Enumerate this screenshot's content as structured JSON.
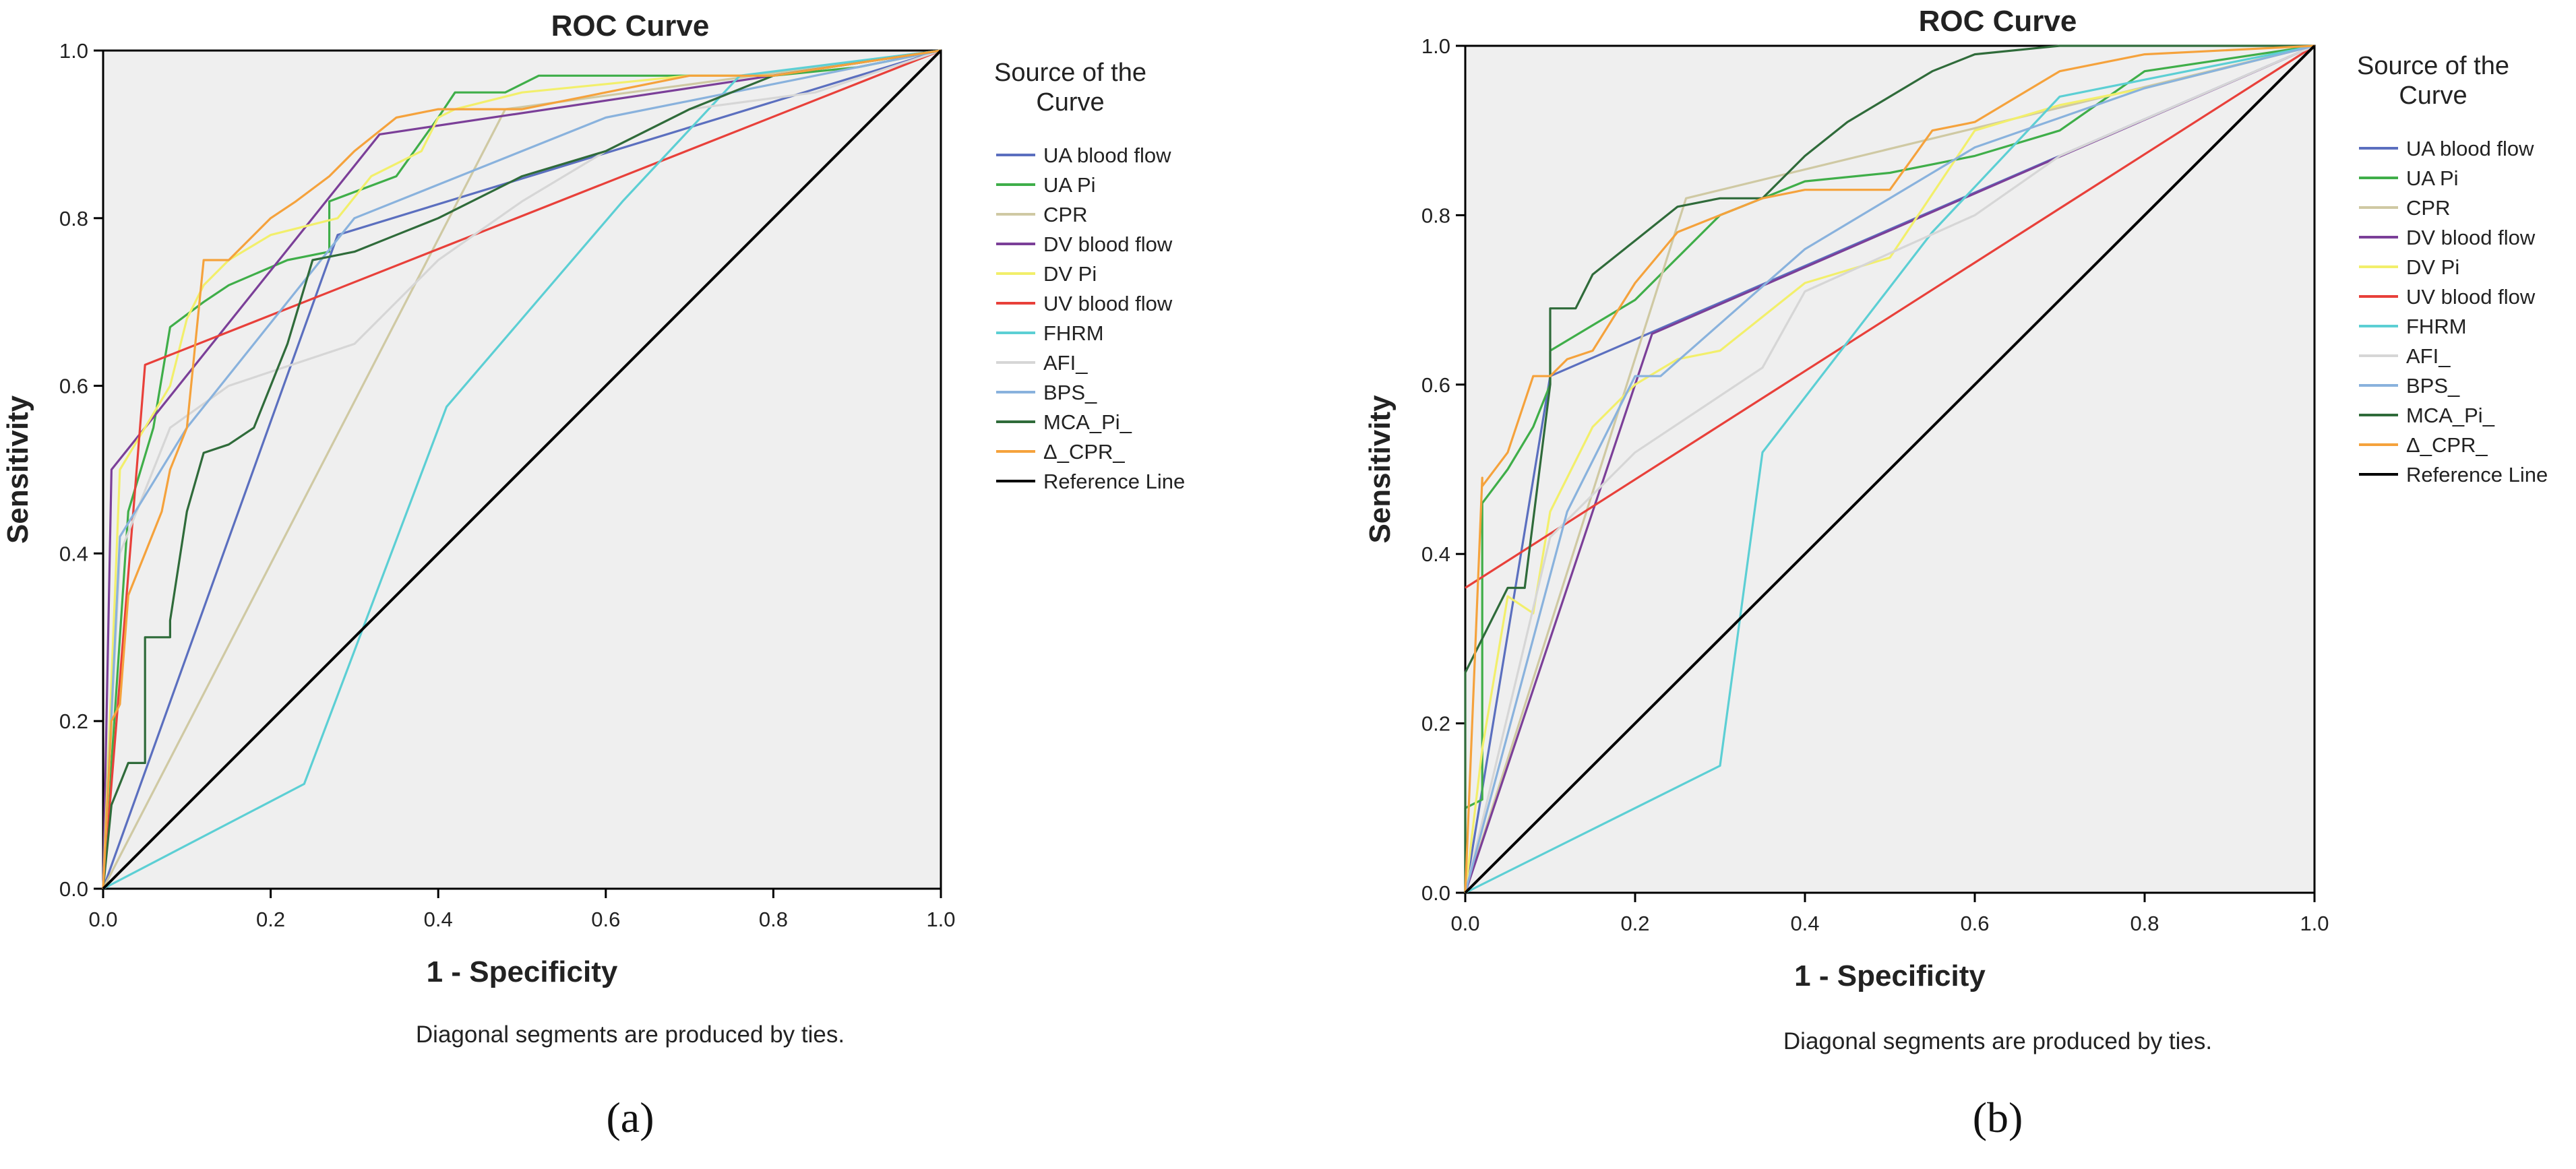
{
  "panels": [
    {
      "panel_label": "(a)",
      "footnote": "Diagonal segments are produced by ties."
    },
    {
      "panel_label": "(b)",
      "footnote": "Diagonal segments are produced by ties."
    }
  ],
  "chart_data": [
    {
      "type": "line",
      "title": "ROC Curve",
      "xlabel": "1 - Specificity",
      "ylabel": "Sensitivity",
      "xlim": [
        0,
        1
      ],
      "ylim": [
        0,
        1
      ],
      "xticks": [
        "0.0",
        "0.2",
        "0.4",
        "0.6",
        "0.8",
        "1.0"
      ],
      "yticks": [
        "0.0",
        "0.2",
        "0.4",
        "0.6",
        "0.8",
        "1.0"
      ],
      "grid": false,
      "legend_title": "Source of the Curve",
      "legend_position": "right",
      "series": [
        {
          "name": "UA blood flow",
          "color": "#5b6fbf",
          "x": [
            0,
            0.28,
            1
          ],
          "y": [
            0,
            0.78,
            1
          ]
        },
        {
          "name": "UA  Pi",
          "color": "#3fae49",
          "x": [
            0,
            0.02,
            0.03,
            0.06,
            0.08,
            0.12,
            0.15,
            0.22,
            0.27,
            0.27,
            0.35,
            0.4,
            0.42,
            0.48,
            0.52,
            0.55,
            0.6,
            0.68,
            0.8,
            0.9,
            1
          ],
          "y": [
            0,
            0.3,
            0.45,
            0.55,
            0.67,
            0.7,
            0.72,
            0.75,
            0.76,
            0.82,
            0.85,
            0.92,
            0.95,
            0.95,
            0.97,
            0.97,
            0.97,
            0.97,
            0.97,
            0.98,
            1
          ]
        },
        {
          "name": "CPR",
          "color": "#cfc9a3",
          "x": [
            0,
            0.48,
            1
          ],
          "y": [
            0,
            0.93,
            1
          ]
        },
        {
          "name": "DV blood flow",
          "color": "#7b3f98",
          "x": [
            0,
            0.01,
            0.33,
            1
          ],
          "y": [
            0,
            0.5,
            0.9,
            1
          ]
        },
        {
          "name": "DV Pi",
          "color": "#f2ef6b",
          "x": [
            0,
            0.02,
            0.08,
            0.1,
            0.12,
            0.15,
            0.2,
            0.28,
            0.32,
            0.38,
            0.4,
            0.42,
            0.5,
            0.6,
            0.7,
            0.8,
            1
          ],
          "y": [
            0,
            0.5,
            0.6,
            0.68,
            0.72,
            0.75,
            0.78,
            0.8,
            0.85,
            0.88,
            0.92,
            0.93,
            0.95,
            0.96,
            0.97,
            0.97,
            1
          ]
        },
        {
          "name": "UV blood flow",
          "color": "#e8403a",
          "x": [
            0,
            0.05,
            1
          ],
          "y": [
            0,
            0.625,
            1
          ]
        },
        {
          "name": "FHRM",
          "color": "#5ccfd4",
          "x": [
            0,
            0.24,
            0.41,
            0.62,
            0.76,
            1
          ],
          "y": [
            0,
            0.125,
            0.575,
            0.82,
            0.97,
            1
          ]
        },
        {
          "name": "AFI_",
          "color": "#d6d6d6",
          "x": [
            0,
            0.02,
            0.08,
            0.15,
            0.3,
            0.4,
            0.5,
            0.6,
            0.7,
            0.85,
            1
          ],
          "y": [
            0,
            0.4,
            0.55,
            0.6,
            0.65,
            0.75,
            0.82,
            0.88,
            0.93,
            0.95,
            1
          ]
        },
        {
          "name": "BPS_",
          "color": "#89b2dd",
          "x": [
            0,
            0.02,
            0.1,
            0.3,
            0.6,
            0.8,
            1
          ],
          "y": [
            0,
            0.42,
            0.55,
            0.8,
            0.92,
            0.96,
            1
          ]
        },
        {
          "name": "MCA_Pi_",
          "color": "#2f6b3a",
          "x": [
            0,
            0.01,
            0.02,
            0.03,
            0.05,
            0.05,
            0.08,
            0.08,
            0.1,
            0.12,
            0.15,
            0.18,
            0.2,
            0.22,
            0.25,
            0.3,
            0.35,
            0.4,
            0.5,
            0.6,
            0.7,
            0.8,
            1
          ],
          "y": [
            0,
            0.1,
            0.125,
            0.15,
            0.15,
            0.3,
            0.3,
            0.32,
            0.45,
            0.52,
            0.53,
            0.55,
            0.6,
            0.65,
            0.75,
            0.76,
            0.78,
            0.8,
            0.85,
            0.88,
            0.93,
            0.97,
            1
          ]
        },
        {
          "name": "Δ_CPR_",
          "color": "#f5a23c",
          "x": [
            0,
            0.01,
            0.02,
            0.03,
            0.05,
            0.07,
            0.08,
            0.1,
            0.12,
            0.15,
            0.2,
            0.23,
            0.27,
            0.3,
            0.35,
            0.4,
            0.5,
            0.6,
            0.7,
            0.8,
            1
          ],
          "y": [
            0,
            0.2,
            0.22,
            0.35,
            0.4,
            0.45,
            0.5,
            0.55,
            0.75,
            0.75,
            0.8,
            0.82,
            0.85,
            0.88,
            0.92,
            0.93,
            0.93,
            0.95,
            0.97,
            0.97,
            1
          ]
        },
        {
          "name": "Reference Line",
          "color": "#000000",
          "x": [
            0,
            1
          ],
          "y": [
            0,
            1
          ]
        }
      ]
    },
    {
      "type": "line",
      "title": "ROC Curve",
      "xlabel": "1 - Specificity",
      "ylabel": "Sensitivity",
      "xlim": [
        0,
        1
      ],
      "ylim": [
        0,
        1
      ],
      "xticks": [
        "0.0",
        "0.2",
        "0.4",
        "0.6",
        "0.8",
        "1.0"
      ],
      "yticks": [
        "0.0",
        "0.2",
        "0.4",
        "0.6",
        "0.8",
        "1.0"
      ],
      "grid": false,
      "legend_title": "Source of the Curve",
      "legend_position": "right",
      "series": [
        {
          "name": "UA blood flow",
          "color": "#5b6fbf",
          "x": [
            0,
            0.1,
            1
          ],
          "y": [
            0,
            0.61,
            1
          ]
        },
        {
          "name": "UA  Pi",
          "color": "#3fae49",
          "x": [
            0,
            0,
            0.02,
            0.02,
            0.05,
            0.08,
            0.1,
            0.1,
            0.15,
            0.2,
            0.25,
            0.3,
            0.35,
            0.4,
            0.5,
            0.6,
            0.7,
            0.8,
            1
          ],
          "y": [
            0,
            0.1,
            0.11,
            0.46,
            0.5,
            0.55,
            0.6,
            0.64,
            0.67,
            0.7,
            0.75,
            0.8,
            0.82,
            0.84,
            0.85,
            0.87,
            0.9,
            0.97,
            1
          ]
        },
        {
          "name": "CPR",
          "color": "#cfc9a3",
          "x": [
            0,
            0.26,
            1
          ],
          "y": [
            0,
            0.82,
            1
          ]
        },
        {
          "name": "DV blood flow",
          "color": "#7b3f98",
          "x": [
            0,
            0.22,
            1
          ],
          "y": [
            0,
            0.66,
            1
          ]
        },
        {
          "name": "DV Pi",
          "color": "#f2ef6b",
          "x": [
            0,
            0.02,
            0.05,
            0.08,
            0.1,
            0.15,
            0.2,
            0.25,
            0.3,
            0.4,
            0.5,
            0.6,
            0.7,
            0.8,
            1
          ],
          "y": [
            0,
            0.17,
            0.35,
            0.33,
            0.45,
            0.55,
            0.6,
            0.63,
            0.64,
            0.72,
            0.75,
            0.9,
            0.93,
            0.95,
            1
          ]
        },
        {
          "name": "UV blood flow",
          "color": "#e8403a",
          "x": [
            0,
            1
          ],
          "y": [
            0.36,
            1
          ]
        },
        {
          "name": "FHRM",
          "color": "#5ccfd4",
          "x": [
            0,
            0.3,
            0.35,
            0.55,
            0.7,
            1
          ],
          "y": [
            0,
            0.15,
            0.52,
            0.78,
            0.94,
            1
          ]
        },
        {
          "name": "AFI_",
          "color": "#d6d6d6",
          "x": [
            0,
            0.1,
            0.2,
            0.35,
            0.4,
            0.6,
            0.7,
            1
          ],
          "y": [
            0,
            0.42,
            0.52,
            0.62,
            0.71,
            0.8,
            0.87,
            1
          ]
        },
        {
          "name": "BPS_",
          "color": "#89b2dd",
          "x": [
            0,
            0.12,
            0.2,
            0.23,
            0.4,
            0.6,
            0.8,
            1
          ],
          "y": [
            0,
            0.45,
            0.61,
            0.61,
            0.76,
            0.88,
            0.95,
            1
          ]
        },
        {
          "name": "MCA_Pi_",
          "color": "#2f6b3a",
          "x": [
            0,
            0,
            0.05,
            0.07,
            0.1,
            0.1,
            0.13,
            0.15,
            0.2,
            0.25,
            0.3,
            0.35,
            0.38,
            0.4,
            0.45,
            0.5,
            0.55,
            0.6,
            0.7,
            1
          ],
          "y": [
            0,
            0.26,
            0.36,
            0.36,
            0.6,
            0.69,
            0.69,
            0.73,
            0.77,
            0.81,
            0.82,
            0.82,
            0.85,
            0.87,
            0.91,
            0.94,
            0.97,
            0.99,
            1,
            1
          ]
        },
        {
          "name": "Δ_CPR_",
          "color": "#f5a23c",
          "x": [
            0,
            0.02,
            0.02,
            0.05,
            0.08,
            0.1,
            0.12,
            0.15,
            0.2,
            0.25,
            0.3,
            0.35,
            0.4,
            0.45,
            0.5,
            0.55,
            0.6,
            0.65,
            0.7,
            0.8,
            1
          ],
          "y": [
            0,
            0.49,
            0.48,
            0.52,
            0.61,
            0.61,
            0.63,
            0.64,
            0.72,
            0.78,
            0.8,
            0.82,
            0.83,
            0.83,
            0.83,
            0.9,
            0.91,
            0.94,
            0.97,
            0.99,
            1
          ]
        },
        {
          "name": "Reference Line",
          "color": "#000000",
          "x": [
            0,
            1
          ],
          "y": [
            0,
            1
          ]
        }
      ]
    }
  ]
}
